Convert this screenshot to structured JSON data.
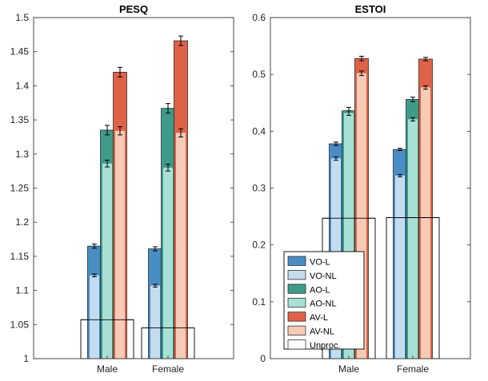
{
  "chart_data": [
    {
      "type": "bar",
      "title": "PESQ",
      "categories": [
        "Male",
        "Female"
      ],
      "ylim": [
        1,
        1.5
      ],
      "yticks": [
        "1",
        "1.05",
        "1.1",
        "1.15",
        "1.2",
        "1.25",
        "1.3",
        "1.35",
        "1.4",
        "1.45",
        "1.5"
      ],
      "grid": false,
      "unprocessed": {
        "values": [
          1.057,
          1.045
        ]
      },
      "series": [
        {
          "name": "VO-L",
          "color": "#4a8cc4",
          "values": [
            1.165,
            1.161
          ],
          "err": [
            0.003,
            0.003
          ],
          "nested": "VO-NL"
        },
        {
          "name": "AO-L",
          "color": "#3f9a8a",
          "values": [
            1.335,
            1.367
          ],
          "err": [
            0.007,
            0.007
          ],
          "nested": "AO-NL"
        },
        {
          "name": "AV-L",
          "color": "#de6248",
          "values": [
            1.42,
            1.466
          ],
          "err": [
            0.007,
            0.007
          ],
          "nested": "AV-NL"
        }
      ],
      "nested_series": [
        {
          "name": "VO-NL",
          "color": "#c4dcee",
          "values": [
            1.122,
            1.107
          ],
          "err": [
            0.002,
            0.002
          ]
        },
        {
          "name": "AO-NL",
          "color": "#a9e0d6",
          "values": [
            1.286,
            1.28
          ],
          "err": [
            0.005,
            0.005
          ]
        },
        {
          "name": "AV-NL",
          "color": "#f8cbb6",
          "values": [
            1.334,
            1.331
          ],
          "err": [
            0.006,
            0.006
          ]
        }
      ]
    },
    {
      "type": "bar",
      "title": "ESTOI",
      "categories": [
        "Male",
        "Female"
      ],
      "ylim": [
        0,
        0.6
      ],
      "yticks": [
        "0",
        "0.1",
        "0.2",
        "0.3",
        "0.4",
        "0.5",
        "0.6"
      ],
      "grid": false,
      "unprocessed": {
        "values": [
          0.247,
          0.248
        ]
      },
      "series": [
        {
          "name": "VO-L",
          "color": "#4a8cc4",
          "values": [
            0.378,
            0.368
          ],
          "err": [
            0.003,
            0.002
          ],
          "nested": "VO-NL"
        },
        {
          "name": "AO-L",
          "color": "#3f9a8a",
          "values": [
            0.436,
            0.456
          ],
          "err": [
            0.006,
            0.004
          ],
          "nested": "AO-NL"
        },
        {
          "name": "AV-L",
          "color": "#de6248",
          "values": [
            0.528,
            0.527
          ],
          "err": [
            0.004,
            0.003
          ],
          "nested": "AV-NL"
        }
      ],
      "nested_series": [
        {
          "name": "VO-NL",
          "color": "#c4dcee",
          "values": [
            0.352,
            0.322
          ],
          "err": [
            0.003,
            0.002
          ]
        },
        {
          "name": "AO-NL",
          "color": "#a9e0d6",
          "values": [
            0.432,
            0.421
          ],
          "err": [
            0.004,
            0.003
          ]
        },
        {
          "name": "AV-NL",
          "color": "#f8cbb6",
          "values": [
            0.502,
            0.477
          ],
          "err": [
            0.004,
            0.003
          ]
        }
      ]
    }
  ],
  "legend": {
    "placement": "bottom-left",
    "items": [
      {
        "name": "VO-L",
        "color": "#4a8cc4"
      },
      {
        "name": "VO-NL",
        "color": "#c4dcee"
      },
      {
        "name": "AO-L",
        "color": "#3f9a8a"
      },
      {
        "name": "AO-NL",
        "color": "#a9e0d6"
      },
      {
        "name": "AV-L",
        "color": "#de6248"
      },
      {
        "name": "AV-NL",
        "color": "#f8cbb6"
      },
      {
        "name": "Unproc.",
        "color": "#ffffff"
      }
    ]
  }
}
